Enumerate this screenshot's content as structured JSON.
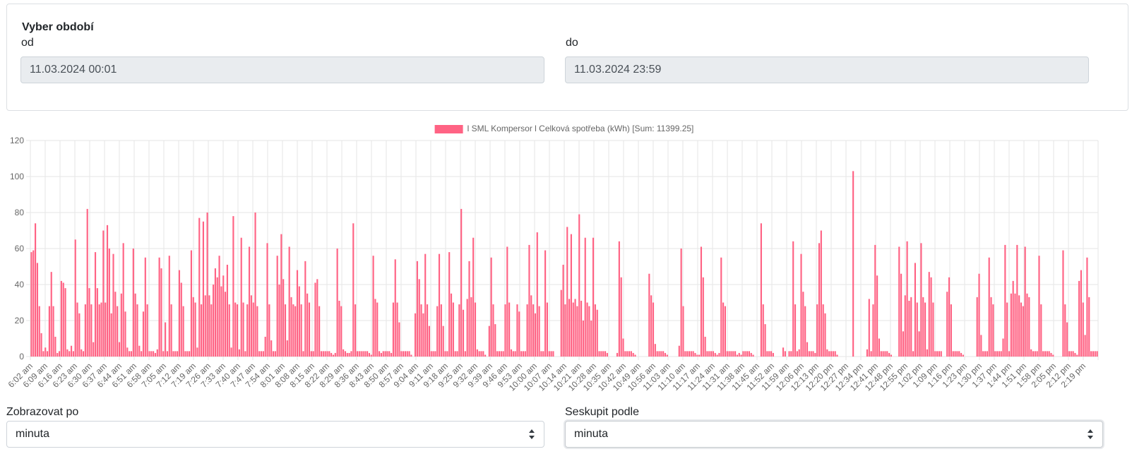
{
  "period": {
    "title": "Vyber období",
    "from_label": "od",
    "from_value": "11.03.2024 00:01",
    "to_label": "do",
    "to_value": "11.03.2024 23:59"
  },
  "controls": {
    "display_label": "Zobrazovat po",
    "display_value": "minuta",
    "group_label": "Seskupit podle",
    "group_value": "minuta"
  },
  "colors": {
    "bar": "#ff6384",
    "grid": "#e6e6e6",
    "tick_text": "#666666"
  },
  "chart_data": {
    "type": "bar",
    "legend": "l SML Kompersor l Celková spotřeba (kWh) [Sum: 11399.25]",
    "legend_position": "top",
    "ylim": [
      0,
      120
    ],
    "yticks": [
      0,
      20,
      40,
      60,
      80,
      100,
      120
    ],
    "grid": true,
    "x_tick_labels": [
      "6:02 am",
      "6:09 am",
      "6:16 am",
      "6:23 am",
      "6:30 am",
      "6:37 am",
      "6:44 am",
      "6:51 am",
      "6:58 am",
      "7:05 am",
      "7:12 am",
      "7:19 am",
      "7:26 am",
      "7:33 am",
      "7:40 am",
      "7:47 am",
      "7:54 am",
      "8:01 am",
      "8:08 am",
      "8:15 am",
      "8:22 am",
      "8:29 am",
      "8:36 am",
      "8:43 am",
      "8:50 am",
      "8:57 am",
      "9:04 am",
      "9:11 am",
      "9:18 am",
      "9:25 am",
      "9:32 am",
      "9:39 am",
      "9:46 am",
      "9:53 am",
      "10:00 am",
      "10:07 am",
      "10:14 am",
      "10:21 am",
      "10:28 am",
      "10:35 am",
      "10:42 am",
      "10:49 am",
      "10:56 am",
      "11:03 am",
      "11:10 am",
      "11:17 am",
      "11:24 am",
      "11:31 am",
      "11:38 am",
      "11:45 am",
      "11:52 am",
      "11:59 am",
      "12:06 pm",
      "12:13 pm",
      "12:20 pm",
      "12:27 pm",
      "12:34 pm",
      "12:41 pm",
      "12:48 pm",
      "12:55 pm",
      "1:02 pm",
      "1:09 pm",
      "1:16 pm",
      "1:23 pm",
      "1:30 pm",
      "1:37 pm",
      "1:44 pm",
      "1:51 pm",
      "1:58 pm",
      "2:05 pm",
      "2:12 pm",
      "2:19 pm"
    ],
    "values": [
      58,
      59,
      74,
      52,
      28,
      13,
      3,
      5,
      3,
      28,
      47,
      28,
      11,
      2,
      3,
      42,
      41,
      38,
      4,
      3,
      6,
      3,
      65,
      30,
      24,
      4,
      3,
      29,
      82,
      38,
      29,
      8,
      58,
      38,
      29,
      30,
      70,
      30,
      73,
      60,
      24,
      57,
      36,
      28,
      8,
      35,
      63,
      25,
      5,
      3,
      3,
      60,
      35,
      29,
      6,
      3,
      25,
      55,
      29,
      3,
      3,
      3,
      2,
      4,
      55,
      49,
      3,
      19,
      3,
      56,
      29,
      3,
      3,
      3,
      48,
      41,
      28,
      3,
      3,
      3,
      59,
      33,
      30,
      5,
      77,
      29,
      75,
      34,
      80,
      34,
      29,
      40,
      49,
      44,
      56,
      39,
      45,
      36,
      51,
      29,
      5,
      78,
      30,
      29,
      4,
      66,
      30,
      3,
      29,
      61,
      34,
      30,
      80,
      28,
      3,
      3,
      3,
      11,
      63,
      29,
      9,
      3,
      3,
      56,
      40,
      68,
      43,
      29,
      9,
      61,
      33,
      29,
      28,
      48,
      39,
      29,
      3,
      53,
      35,
      30,
      3,
      3,
      41,
      43,
      28,
      3,
      3,
      3,
      3,
      3,
      2,
      1,
      2,
      60,
      31,
      28,
      4,
      3,
      2,
      2,
      3,
      74,
      29,
      3,
      3,
      3,
      3,
      3,
      3,
      2,
      1,
      56,
      32,
      30,
      3,
      2,
      3,
      3,
      3,
      3,
      2,
      30,
      54,
      30,
      19,
      3,
      3,
      3,
      3,
      3,
      1,
      0,
      24,
      53,
      43,
      29,
      24,
      57,
      29,
      17,
      3,
      3,
      3,
      28,
      57,
      29,
      17,
      3,
      3,
      58,
      35,
      30,
      3,
      3,
      29,
      82,
      26,
      3,
      32,
      53,
      33,
      66,
      30,
      4,
      3,
      3,
      3,
      1,
      0,
      17,
      55,
      29,
      18,
      3,
      3,
      3,
      3,
      29,
      61,
      30,
      4,
      3,
      3,
      29,
      25,
      3,
      3,
      3,
      29,
      62,
      34,
      29,
      24,
      69,
      28,
      3,
      3,
      59,
      30,
      3,
      3,
      3,
      0,
      0,
      0,
      37,
      51,
      29,
      72,
      32,
      68,
      30,
      32,
      28,
      79,
      31,
      20,
      66,
      30,
      28,
      20,
      66,
      29,
      26,
      3,
      3,
      3,
      3,
      2,
      0,
      0,
      0,
      0,
      2,
      64,
      44,
      10,
      3,
      3,
      3,
      3,
      2,
      1,
      0,
      0,
      0,
      0,
      0,
      0,
      46,
      34,
      30,
      7,
      3,
      3,
      3,
      3,
      2,
      1,
      0,
      0,
      0,
      0,
      0,
      6,
      60,
      28,
      3,
      3,
      3,
      3,
      3,
      2,
      1,
      1,
      61,
      44,
      11,
      3,
      3,
      3,
      3,
      2,
      1,
      2,
      55,
      30,
      28,
      3,
      3,
      3,
      3,
      3,
      1,
      2,
      1,
      3,
      3,
      3,
      3,
      2,
      1,
      0,
      0,
      0,
      74,
      29,
      18,
      3,
      3,
      3,
      2,
      0,
      0,
      0,
      0,
      5,
      3,
      0,
      3,
      3,
      64,
      29,
      3,
      4,
      57,
      36,
      28,
      8,
      3,
      3,
      3,
      2,
      29,
      63,
      70,
      29,
      24,
      4,
      3,
      3,
      3,
      3,
      1,
      0,
      0,
      0,
      0,
      0,
      0,
      0,
      103,
      0,
      0,
      0,
      0,
      0,
      0,
      4,
      32,
      3,
      29,
      62,
      45,
      10,
      3,
      3,
      3,
      3,
      2,
      1,
      0,
      0,
      0,
      61,
      46,
      14,
      34,
      64,
      31,
      33,
      3,
      52,
      30,
      14,
      63,
      33,
      30,
      4,
      47,
      44,
      30,
      3,
      3,
      3,
      3,
      0,
      0,
      36,
      44,
      29,
      3,
      3,
      3,
      3,
      2,
      1,
      0,
      0,
      0,
      0,
      0,
      0,
      33,
      46,
      12,
      3,
      3,
      3,
      55,
      33,
      29,
      3,
      3,
      3,
      3,
      10,
      62,
      30,
      3,
      35,
      42,
      35,
      62,
      34,
      30,
      28,
      61,
      35,
      33,
      4,
      3,
      3,
      3,
      56,
      29,
      3,
      3,
      3,
      3,
      2,
      1,
      0,
      0,
      0,
      0,
      59,
      29,
      19,
      3,
      3,
      3,
      2,
      1,
      42,
      48,
      30,
      12,
      55,
      33,
      3,
      3,
      3,
      3
    ]
  }
}
